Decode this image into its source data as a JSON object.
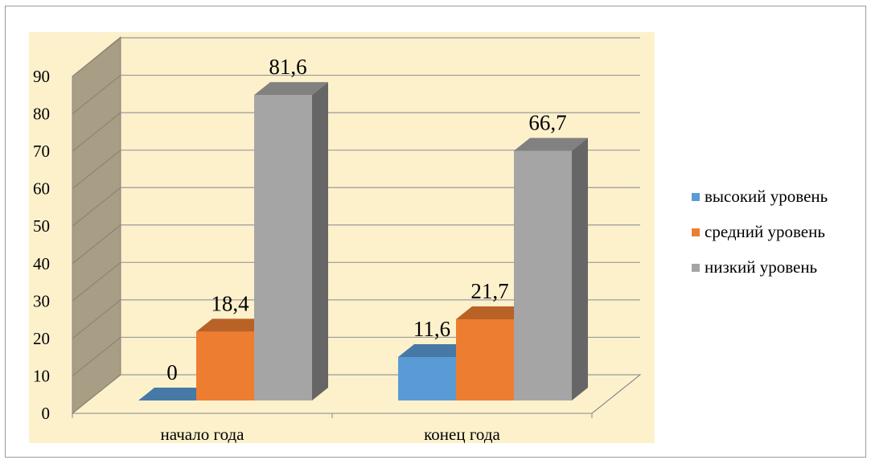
{
  "chart_data": {
    "type": "bar",
    "categories": [
      "начало года",
      "конец года"
    ],
    "series": [
      {
        "name": "высокий уровень",
        "values": [
          0,
          11.6
        ],
        "labels": [
          "0",
          "11,6"
        ],
        "color": "#5b9bd5"
      },
      {
        "name": "средний уровень",
        "values": [
          18.4,
          21.7
        ],
        "labels": [
          "18,4",
          "21,7"
        ],
        "color": "#ed7d31"
      },
      {
        "name": "низкий уровень",
        "values": [
          81.6,
          66.7
        ],
        "labels": [
          "81,6",
          "66,7"
        ],
        "color": "#a5a5a5"
      }
    ],
    "y_ticks": [
      "0",
      "10",
      "20",
      "30",
      "40",
      "50",
      "60",
      "70",
      "80",
      "90"
    ],
    "ylim": [
      0,
      90
    ],
    "plot_background": "#fdf1cc",
    "wall_color": "#a89e86",
    "grid": true,
    "three_d": true,
    "legend_position": "right"
  }
}
